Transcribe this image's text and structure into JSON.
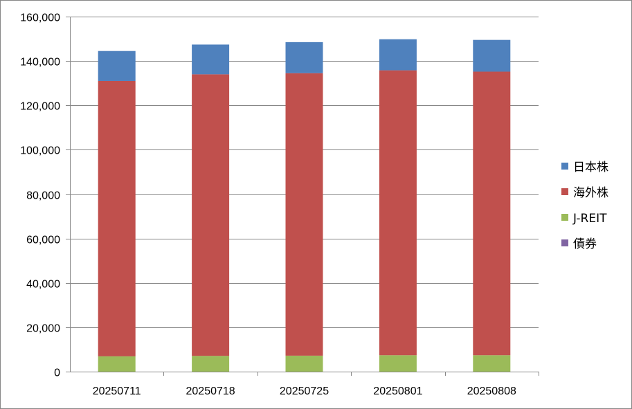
{
  "chart_data": {
    "type": "bar",
    "stacked": true,
    "categories": [
      "20250711",
      "20250718",
      "20250725",
      "20250801",
      "20250808"
    ],
    "series": [
      {
        "name": "債券",
        "color": "#8064A2",
        "values": [
          0,
          0,
          0,
          0,
          0
        ]
      },
      {
        "name": "J-REIT",
        "color": "#9BBB59",
        "values": [
          6900,
          7100,
          7200,
          7400,
          7400
        ]
      },
      {
        "name": "海外株",
        "color": "#C0504D",
        "values": [
          124100,
          126900,
          127300,
          128400,
          127800
        ]
      },
      {
        "name": "日本株",
        "color": "#4F81BD",
        "values": [
          13500,
          13400,
          14000,
          14000,
          14300
        ]
      }
    ],
    "legend_order": [
      "日本株",
      "海外株",
      "J-REIT",
      "債券"
    ],
    "y_ticks": [
      "0",
      "20,000",
      "40,000",
      "60,000",
      "80,000",
      "100,000",
      "120,000",
      "140,000",
      "160,000"
    ],
    "ylim": [
      0,
      160000
    ],
    "grid": true,
    "legend_position": "right",
    "title": "",
    "xlabel": "",
    "ylabel": ""
  }
}
